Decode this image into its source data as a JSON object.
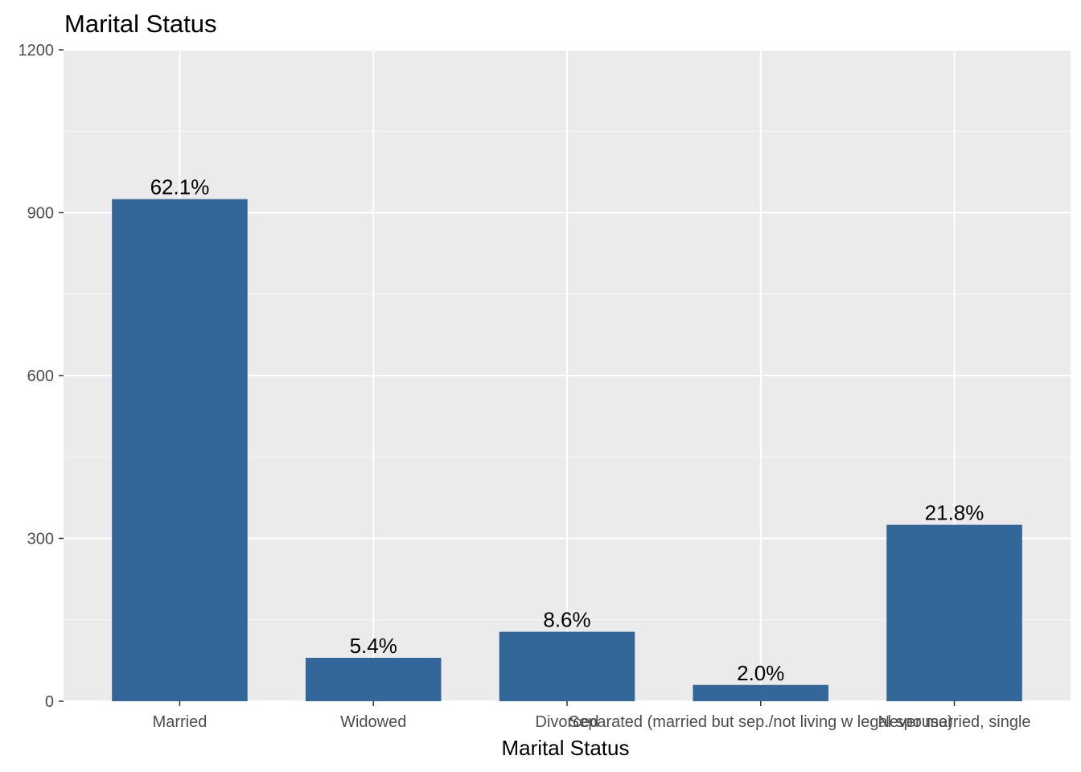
{
  "chart_data": {
    "type": "bar",
    "title": "Marital Status",
    "xlabel": "Marital Status",
    "ylabel": "",
    "ylim": [
      0,
      1200
    ],
    "yticks": [
      0,
      300,
      600,
      900,
      1200
    ],
    "categories": [
      "Married",
      "Widowed",
      "Divorced",
      "Separated (married but sep./not living w legal spouse)",
      "Never married, single"
    ],
    "values": [
      925,
      80,
      128,
      30,
      325
    ],
    "data_labels": [
      "62.1%",
      "5.4%",
      "8.6%",
      "2.0%",
      "21.8%"
    ],
    "grid": true,
    "legend": "none"
  },
  "colors": {
    "bar": "#336699",
    "panel": "#EBEBEB",
    "grid_major": "#FFFFFF",
    "tick": "#333333"
  }
}
